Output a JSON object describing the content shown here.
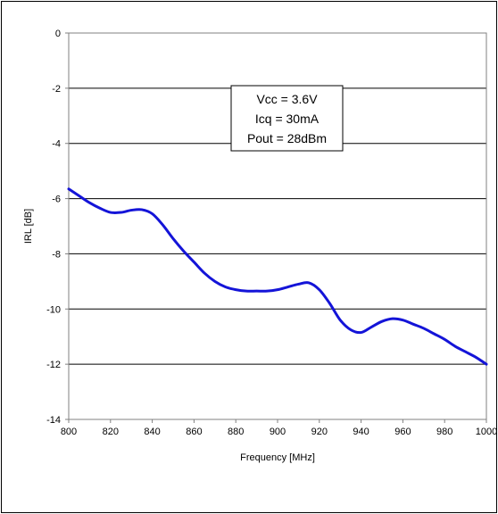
{
  "chart_data": {
    "type": "line",
    "title": "",
    "xlabel": "Frequency [MHz]",
    "ylabel": "IRL [dB]",
    "xlim": [
      800,
      1000
    ],
    "ylim": [
      -14,
      0
    ],
    "x_ticks": [
      800,
      820,
      840,
      860,
      880,
      900,
      920,
      940,
      960,
      980,
      1000
    ],
    "y_ticks": [
      0,
      -2,
      -4,
      -6,
      -8,
      -10,
      -12,
      -14
    ],
    "grid": "horizontal",
    "legend": "none",
    "series": [
      {
        "color": "#1414d8",
        "x": [
          800,
          805,
          810,
          815,
          820,
          825,
          830,
          835,
          840,
          845,
          850,
          855,
          860,
          865,
          870,
          875,
          880,
          885,
          890,
          895,
          900,
          905,
          910,
          915,
          920,
          925,
          930,
          935,
          940,
          945,
          950,
          955,
          960,
          965,
          970,
          975,
          980,
          985,
          990,
          995,
          1000
        ],
        "y": [
          -5.65,
          -5.9,
          -6.15,
          -6.35,
          -6.5,
          -6.5,
          -6.42,
          -6.4,
          -6.55,
          -6.95,
          -7.45,
          -7.9,
          -8.3,
          -8.7,
          -9.0,
          -9.2,
          -9.3,
          -9.35,
          -9.35,
          -9.35,
          -9.3,
          -9.2,
          -9.1,
          -9.05,
          -9.3,
          -9.8,
          -10.4,
          -10.75,
          -10.85,
          -10.65,
          -10.45,
          -10.35,
          -10.4,
          -10.55,
          -10.7,
          -10.9,
          -11.1,
          -11.35,
          -11.55,
          -11.75,
          -12.0
        ]
      }
    ],
    "annotation": {
      "lines": [
        "Vcc = 3.6V",
        "Icq = 30mA",
        "Pout = 28dBm"
      ]
    }
  }
}
